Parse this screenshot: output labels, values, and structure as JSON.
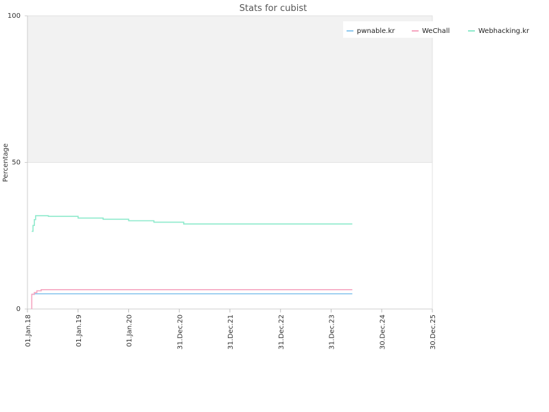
{
  "chart_data": {
    "type": "line",
    "title": "Stats for cubist",
    "xlabel": "",
    "ylabel": "Percentage",
    "ylim": [
      0,
      100
    ],
    "xlim": [
      "2018-01-01",
      "2025-12-30"
    ],
    "y_ticks": [
      "0",
      "50",
      "100"
    ],
    "x_ticks": [
      {
        "date": "2018-01-01",
        "label": "01.Jan.18"
      },
      {
        "date": "2019-01-01",
        "label": "01.Jan.19"
      },
      {
        "date": "2020-01-01",
        "label": "01.Jan.20"
      },
      {
        "date": "2020-12-31",
        "label": "31.Dec.20"
      },
      {
        "date": "2021-12-31",
        "label": "31.Dec.21"
      },
      {
        "date": "2022-12-31",
        "label": "31.Dec.22"
      },
      {
        "date": "2023-12-31",
        "label": "31.Dec.23"
      },
      {
        "date": "2024-12-30",
        "label": "30.Dec.24"
      },
      {
        "date": "2025-12-30",
        "label": "30.Dec.25"
      }
    ],
    "legend_position": "top-right",
    "shaded_band": [
      50,
      100
    ],
    "series": [
      {
        "name": "pwnable.kr",
        "color": "#8ec8ee",
        "points": [
          [
            "2018-02-01",
            5
          ],
          [
            "2018-02-20",
            5.2
          ],
          [
            "2024-06-01",
            5.2
          ]
        ]
      },
      {
        "name": "WeChall",
        "color": "#f5a5c0",
        "points": [
          [
            "2018-02-01",
            0
          ],
          [
            "2018-02-01",
            5
          ],
          [
            "2018-02-20",
            5.6
          ],
          [
            "2018-03-10",
            6.2
          ],
          [
            "2018-04-10",
            6.6
          ],
          [
            "2024-06-01",
            6.6
          ]
        ]
      },
      {
        "name": "Webhacking.kr",
        "color": "#8eeacc",
        "points": [
          [
            "2018-02-01",
            26.5
          ],
          [
            "2018-02-10",
            28.5
          ],
          [
            "2018-02-20",
            30.5
          ],
          [
            "2018-03-01",
            31.8
          ],
          [
            "2018-06-01",
            31.6
          ],
          [
            "2019-01-01",
            31.0
          ],
          [
            "2019-07-01",
            30.6
          ],
          [
            "2020-01-01",
            30.1
          ],
          [
            "2020-07-01",
            29.6
          ],
          [
            "2021-02-01",
            29.0
          ],
          [
            "2024-06-01",
            29.0
          ]
        ]
      }
    ]
  }
}
